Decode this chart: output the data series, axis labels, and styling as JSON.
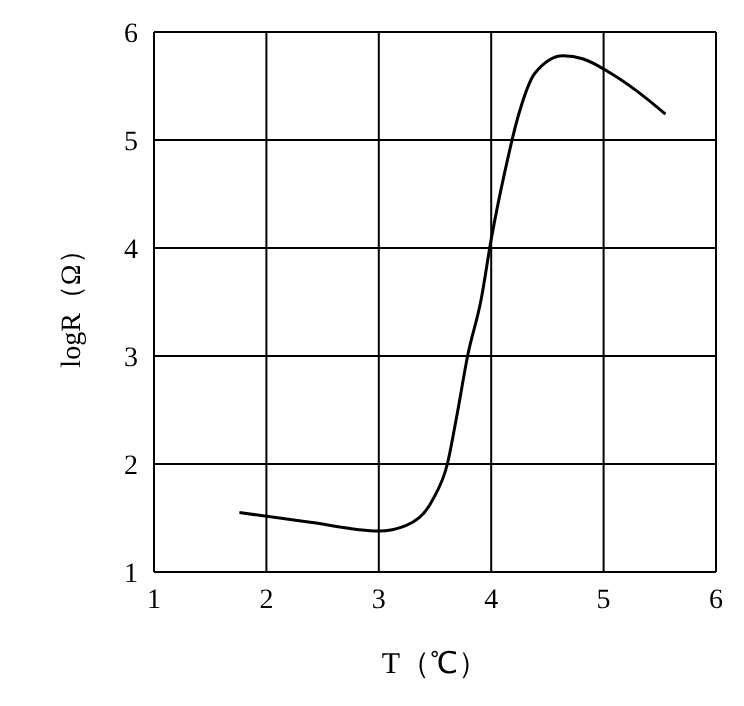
{
  "chart_data": {
    "type": "line",
    "xlabel": "T（℃）",
    "ylabel": "logR（Ω）",
    "x": [
      1.76,
      2.39,
      3.0,
      3.24,
      3.48,
      3.61,
      3.7,
      3.79,
      3.91,
      4.0,
      4.12,
      4.24,
      4.39,
      4.64,
      4.82,
      5.06,
      5.3,
      5.55
    ],
    "series": [
      {
        "color": "#000000",
        "values": [
          1.55,
          1.46,
          1.38,
          1.43,
          1.67,
          2.0,
          2.48,
          3.0,
          3.52,
          4.08,
          4.7,
          5.22,
          5.62,
          5.78,
          5.75,
          5.62,
          5.45,
          5.24
        ]
      }
    ],
    "xlim": [
      1,
      6
    ],
    "xticks": [
      1,
      2,
      3,
      4,
      5,
      6
    ],
    "ylim": [
      1,
      6
    ],
    "yticks": [
      1,
      2,
      3,
      4,
      5,
      6
    ],
    "grid": true,
    "legend": false,
    "marker": "none",
    "line_style": "solid"
  }
}
